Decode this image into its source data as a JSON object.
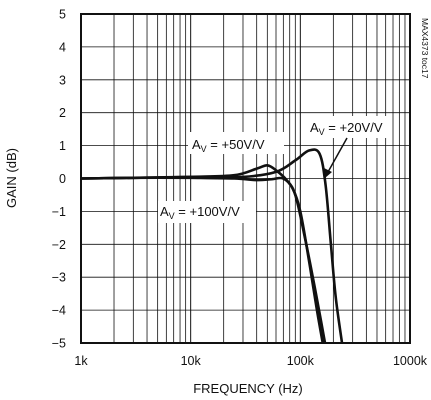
{
  "chart_data": {
    "type": "line",
    "xlabel": "FREQUENCY (Hz)",
    "ylabel": "GAIN (dB)",
    "xscale": "log",
    "xlim": [
      1000,
      1000000
    ],
    "ylim": [
      -5,
      5
    ],
    "grid": true,
    "x_tick_labels": [
      "1k",
      "10k",
      "100k",
      "1000k"
    ],
    "y_tick_labels": [
      "5",
      "4",
      "3",
      "2",
      "1",
      "0",
      "-1",
      "-2",
      "-3",
      "-4",
      "-5"
    ],
    "y_tick_values": [
      5,
      4,
      3,
      2,
      1,
      0,
      -1,
      -2,
      -3,
      -4,
      -5
    ],
    "side_label": "MAX4373 toc17",
    "series": [
      {
        "name": "AV = +20V/V",
        "label_main": "A",
        "label_sub": "V",
        "label_rest": " = +20V/V",
        "x": [
          1000,
          3000,
          10000,
          30000,
          60000,
          90000,
          120000,
          150000,
          170000,
          190000,
          210000,
          240000
        ],
        "y": [
          0,
          0.02,
          0.05,
          0.05,
          0.2,
          0.55,
          0.85,
          0.75,
          -0.2,
          -2.0,
          -3.6,
          -5.0
        ]
      },
      {
        "name": "AV = +50V/V",
        "label_main": "A",
        "label_sub": "V",
        "label_rest": " = +50V/V",
        "x": [
          1000,
          3000,
          10000,
          25000,
          40000,
          50000,
          60000,
          75000,
          90000,
          110000,
          130000,
          150000,
          168000
        ],
        "y": [
          0,
          0.02,
          0.05,
          0.1,
          0.3,
          0.4,
          0.25,
          -0.05,
          -0.5,
          -1.8,
          -3.0,
          -4.1,
          -5.0
        ]
      },
      {
        "name": "AV = +100V/V",
        "label_main": "A",
        "label_sub": "V",
        "label_rest": " = +100V/V",
        "x": [
          1000,
          3000,
          10000,
          25000,
          40000,
          55000,
          70000,
          85000,
          100000,
          120000,
          140000,
          160000
        ],
        "y": [
          0,
          0.02,
          0.02,
          0.0,
          -0.05,
          -0.02,
          0.0,
          -0.3,
          -1.0,
          -2.5,
          -3.9,
          -5.0
        ]
      }
    ]
  }
}
